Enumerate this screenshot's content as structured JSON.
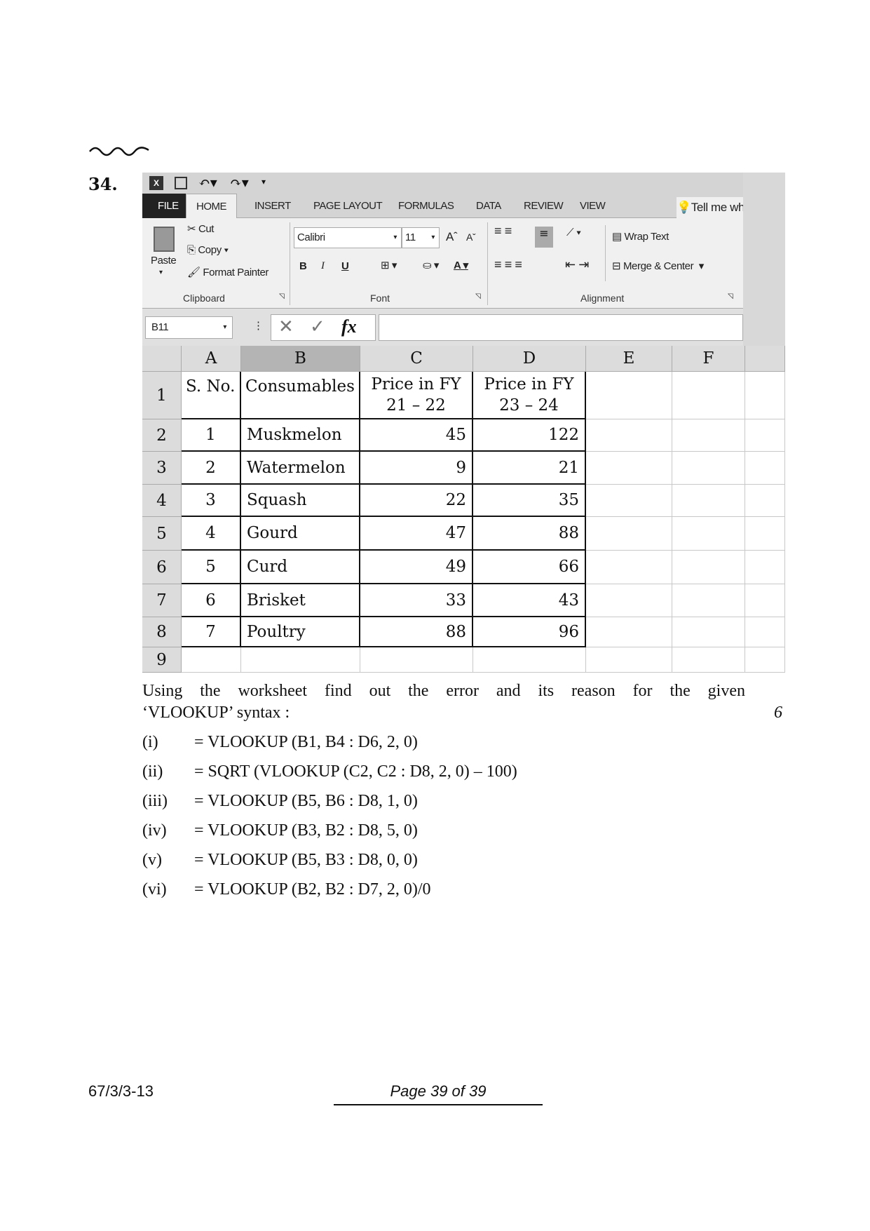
{
  "question_number": "34.",
  "excel": {
    "tabs": [
      "FILE",
      "HOME",
      "INSERT",
      "PAGE LAYOUT",
      "FORMULAS",
      "DATA",
      "REVIEW",
      "VIEW"
    ],
    "active_tab": "HOME",
    "tell_me": "Tell me what yo",
    "clipboard": {
      "paste": "Paste",
      "cut": "Cut",
      "copy": "Copy",
      "format_painter": "Format Painter",
      "group": "Clipboard"
    },
    "font": {
      "name": "Calibri",
      "size": "11",
      "bold": "B",
      "italic": "I",
      "underline": "U",
      "group": "Font"
    },
    "alignment": {
      "wrap_text": "Wrap Text",
      "merge_center": "Merge & Center",
      "group": "Alignment"
    },
    "name_box": "B11",
    "formula_value": "",
    "columns": [
      "A",
      "B",
      "C",
      "D",
      "E",
      "F"
    ],
    "selected_column": "B",
    "row_numbers": [
      "1",
      "2",
      "3",
      "4",
      "5",
      "6",
      "7",
      "8",
      "9"
    ],
    "header_row": [
      "S. No.",
      "Consumables",
      "Price in FY\n21 – 22",
      "Price in FY\n23 – 24"
    ],
    "rows": [
      [
        "1",
        "Muskmelon",
        "45",
        "122"
      ],
      [
        "2",
        "Watermelon",
        "9",
        "21"
      ],
      [
        "3",
        "Squash",
        "22",
        "35"
      ],
      [
        "4",
        "Gourd",
        "47",
        "88"
      ],
      [
        "5",
        "Curd",
        "49",
        "66"
      ],
      [
        "6",
        "Brisket",
        "33",
        "43"
      ],
      [
        "7",
        "Poultry",
        "88",
        "96"
      ]
    ]
  },
  "question": {
    "text_line1": "Using the worksheet find out the error and its reason for the given",
    "text_line2": "‘VLOOKUP’ syntax :",
    "marks": "6",
    "items": [
      {
        "label": "(i)",
        "formula": "= VLOOKUP (B1, B4 : D6, 2, 0)"
      },
      {
        "label": "(ii)",
        "formula": "= SQRT (VLOOKUP (C2, C2 : D8, 2, 0) – 100)"
      },
      {
        "label": "(iii)",
        "formula": "= VLOOKUP (B5, B6 : D8, 1, 0)"
      },
      {
        "label": "(iv)",
        "formula": "= VLOOKUP (B3, B2 : D8, 5, 0)"
      },
      {
        "label": "(v)",
        "formula": "= VLOOKUP (B5, B3 : D8, 0, 0)"
      },
      {
        "label": "(vi)",
        "formula": "= VLOOKUP (B2, B2 : D7, 2, 0)/0"
      }
    ]
  },
  "footer": {
    "code": "67/3/3-13",
    "page": "Page 39 of 39"
  }
}
